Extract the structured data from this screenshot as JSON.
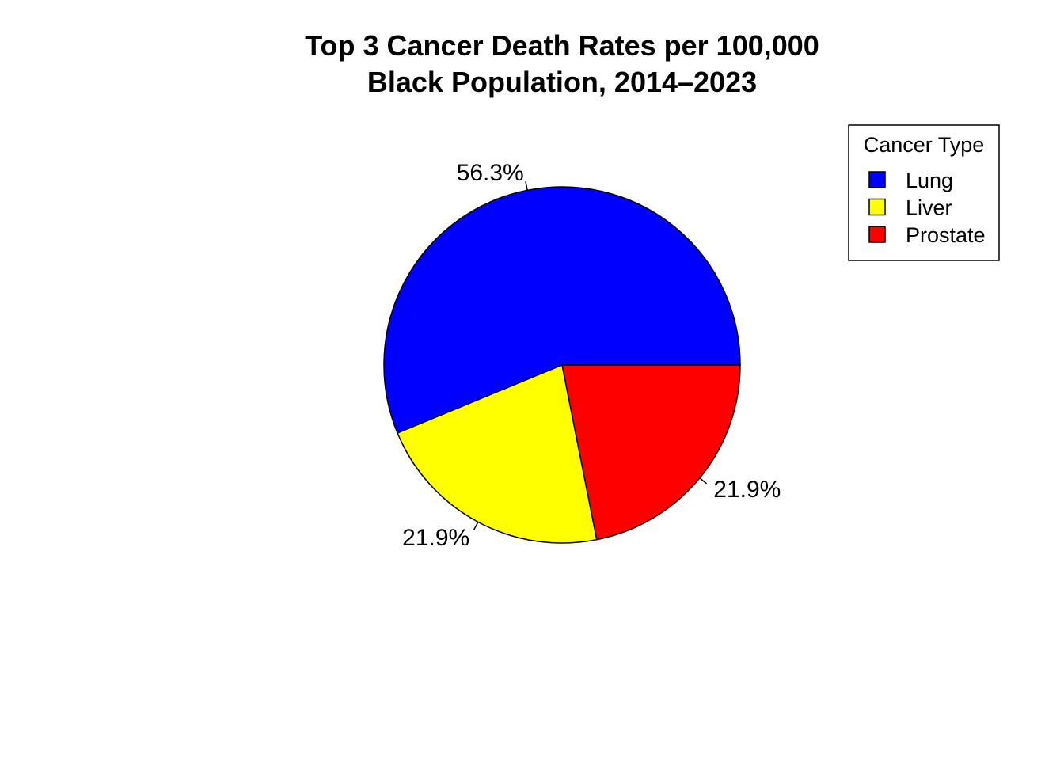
{
  "chart_data": {
    "type": "pie",
    "title_lines": [
      "Top 3 Cancer Death Rates per 100,000",
      "Black Population, 2014–2023"
    ],
    "categories": [
      "Lung",
      "Liver",
      "Prostate"
    ],
    "values": [
      56.3,
      21.9,
      21.9
    ],
    "labels": [
      "56.3%",
      "21.9%",
      "21.9%"
    ],
    "colors": [
      "#0000FF",
      "#FFFF00",
      "#FF0000"
    ],
    "legend": {
      "title": "Cancer Type",
      "entries": [
        "Lung",
        "Liver",
        "Prostate"
      ],
      "placement": "top-right"
    },
    "start": "3 o'clock",
    "direction": "counterclockwise"
  }
}
